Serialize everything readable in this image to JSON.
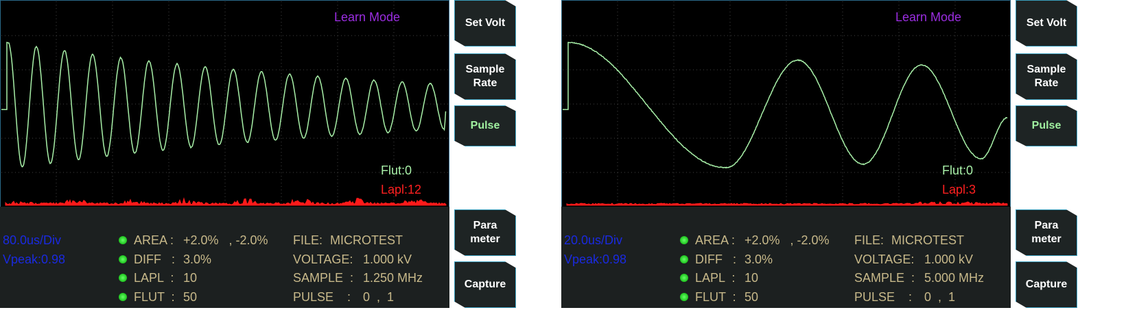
{
  "panels": [
    {
      "mode": "Learn Mode",
      "buttons": [
        [
          "Set Volt"
        ],
        [
          "Sample",
          "Rate"
        ],
        [
          "Pulse"
        ],
        [
          "Para",
          "meter"
        ],
        [
          "Capture"
        ]
      ],
      "flut": "Flut:0",
      "lapl": "Lapl:12",
      "timebase": "80.0us/Div",
      "vpeak": "Vpeak:0.98",
      "params": [
        {
          "label": "AREA :",
          "value": "+2.0%   , -2.0%"
        },
        {
          "label": "DIFF   :",
          "value": "3.0%"
        },
        {
          "label": "LAPL  :",
          "value": "10"
        },
        {
          "label": "FLUT  :",
          "value": "50"
        }
      ],
      "info": [
        {
          "label": "FILE:",
          "value": "MICROTEST"
        },
        {
          "label": "VOLTAGE:",
          "value": "1.000 kV"
        },
        {
          "label": "SAMPLE  :",
          "value": "1.250 MHz"
        },
        {
          "label": "PULSE    :",
          "value": "0  ,  1"
        }
      ]
    },
    {
      "mode": "Learn Mode",
      "buttons": [
        [
          "Set Volt"
        ],
        [
          "Sample",
          "Rate"
        ],
        [
          "Pulse"
        ],
        [
          "Para",
          "meter"
        ],
        [
          "Capture"
        ]
      ],
      "flut": "Flut:0",
      "lapl": "Lapl:3",
      "timebase": "20.0us/Div",
      "vpeak": "Vpeak:0.98",
      "params": [
        {
          "label": "AREA :",
          "value": "+2.0%   , -2.0%"
        },
        {
          "label": "DIFF   :",
          "value": "3.0%"
        },
        {
          "label": "LAPL  :",
          "value": "10"
        },
        {
          "label": "FLUT  :",
          "value": "50"
        }
      ],
      "info": [
        {
          "label": "FILE:",
          "value": "MICROTEST"
        },
        {
          "label": "VOLTAGE:",
          "value": "1.000 kV"
        },
        {
          "label": "SAMPLE  :",
          "value": "5.000 MHz"
        },
        {
          "label": "PULSE    :",
          "value": "0  ,  1"
        }
      ]
    }
  ]
}
